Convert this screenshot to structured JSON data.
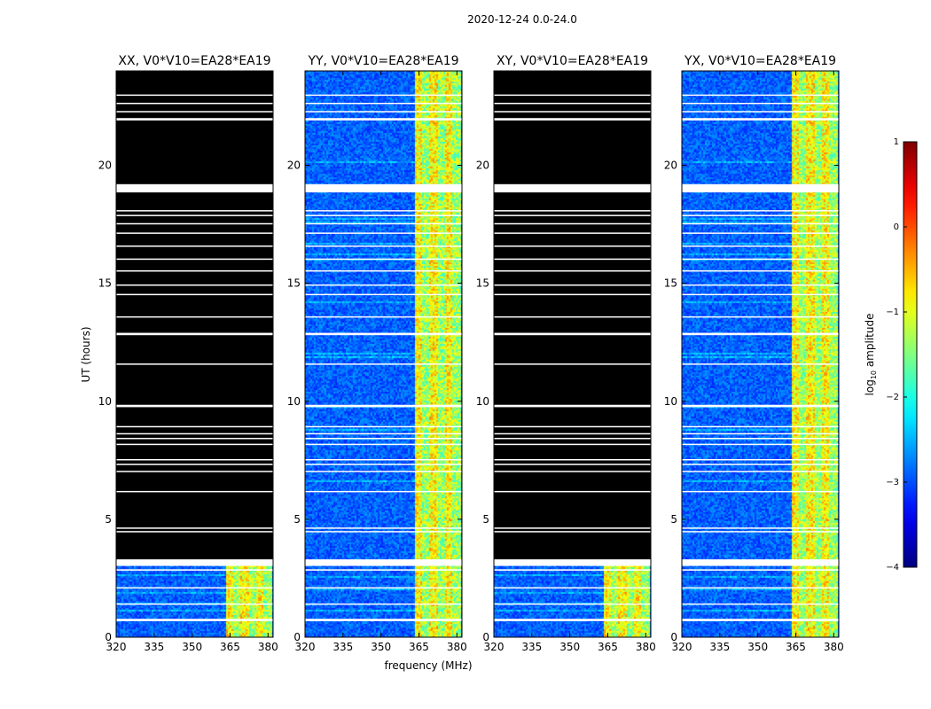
{
  "figure": {
    "suptitle": "2020-12-24 0.0-24.0"
  },
  "chart_data": {
    "type": "heatmap",
    "xlabel": "frequency (MHz)",
    "ylabel": "UT (hours)",
    "xlim": [
      320,
      382
    ],
    "ylim": [
      0,
      24
    ],
    "xticks": [
      320,
      335,
      350,
      365,
      380
    ],
    "xtick_labels": [
      "320",
      "335",
      "350",
      "365",
      "380"
    ],
    "yticks": [
      0,
      5,
      10,
      15,
      20
    ],
    "ytick_labels": [
      "0",
      "5",
      "10",
      "15",
      "20"
    ],
    "panels": [
      {
        "title": "XX, V0*V10=EA28*EA19",
        "mode": "flagged"
      },
      {
        "title": "YY, V0*V10=EA28*EA19",
        "mode": "full"
      },
      {
        "title": "XY, V0*V10=EA28*EA19",
        "mode": "flagged"
      },
      {
        "title": "YX, V0*V10=EA28*EA19",
        "mode": "full"
      }
    ],
    "flagged_valid_range_hours": [
      0.0,
      3.3
    ],
    "flag_gaps_hours": [
      [
        0.68,
        0.78
      ],
      [
        1.38,
        1.43
      ],
      [
        2.08,
        2.12
      ],
      [
        2.82,
        2.88
      ],
      [
        3.02,
        3.3
      ],
      [
        4.45,
        4.5
      ],
      [
        4.6,
        4.65
      ],
      [
        6.15,
        6.2
      ],
      [
        7.0,
        7.05
      ],
      [
        7.3,
        7.35
      ],
      [
        7.5,
        7.55
      ],
      [
        8.15,
        8.2
      ],
      [
        8.4,
        8.45
      ],
      [
        8.6,
        8.65
      ],
      [
        8.9,
        8.95
      ],
      [
        9.75,
        9.85
      ],
      [
        11.55,
        11.6
      ],
      [
        12.8,
        12.9
      ],
      [
        13.55,
        13.6
      ],
      [
        14.5,
        14.55
      ],
      [
        14.9,
        14.95
      ],
      [
        15.5,
        15.55
      ],
      [
        16.0,
        16.05
      ],
      [
        16.55,
        16.6
      ],
      [
        17.1,
        17.15
      ],
      [
        17.5,
        17.55
      ],
      [
        17.85,
        17.9
      ],
      [
        18.05,
        18.1
      ],
      [
        18.85,
        19.2
      ],
      [
        21.9,
        22.0
      ],
      [
        22.25,
        22.3
      ],
      [
        22.6,
        22.65
      ],
      [
        22.95,
        23.0
      ]
    ],
    "rfi_band_mhz": [
      363,
      381
    ],
    "colorbar": {
      "label": "log",
      "label_sub": "10",
      "label_suffix": " amplitude",
      "min": -4,
      "max": 1,
      "ticks": [
        1,
        0,
        -1,
        -2,
        -3,
        -4
      ],
      "tick_labels": [
        "1",
        "0",
        "−1",
        "−2",
        "−3",
        "−4"
      ],
      "colormap": "jet"
    }
  }
}
